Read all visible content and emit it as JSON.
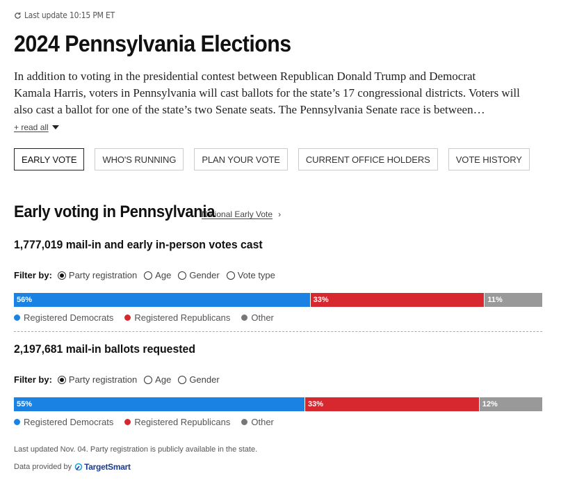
{
  "header": {
    "last_update": "Last update 10:15 PM ET",
    "title": "2024 Pennsylvania Elections",
    "intro_line1": "In addition to voting in the presidential contest between Republican Donald Trump and Democrat",
    "intro_line2": "Kamala Harris, voters in Pennsylvania will cast ballots for the state’s 17 congressional districts. Voters will",
    "intro_line3": "also cast a ballot for one of the state’s two Senate seats. The Pennsylvania Senate race is between…",
    "read_all": "+ read all"
  },
  "tabs": [
    {
      "label": "EARLY VOTE",
      "active": true
    },
    {
      "label": "WHO'S RUNNING"
    },
    {
      "label": "PLAN YOUR VOTE"
    },
    {
      "label": "CURRENT OFFICE HOLDERS"
    },
    {
      "label": "VOTE HISTORY"
    }
  ],
  "early_voting": {
    "title": "Early voting in Pennsylvania",
    "national_link": "National Early Vote",
    "chevron": "›",
    "filter_label": "Filter by:",
    "block1": {
      "count": "1,777,019",
      "count_suffix": " mail-in and early in-person votes cast",
      "filters": [
        "Party registration",
        "Age",
        "Gender",
        "Vote type"
      ],
      "selected_filter": "Party registration",
      "bar": [
        {
          "party": "dem",
          "pct": 56,
          "label": "56%"
        },
        {
          "party": "rep",
          "pct": 33,
          "label": "33%"
        },
        {
          "party": "oth",
          "pct": 11,
          "label": "11%"
        }
      ]
    },
    "block2": {
      "count": "2,197,681",
      "count_suffix": " mail-in ballots requested",
      "filters": [
        "Party registration",
        "Age",
        "Gender"
      ],
      "selected_filter": "Party registration",
      "bar": [
        {
          "party": "dem",
          "pct": 55,
          "label": "55%"
        },
        {
          "party": "rep",
          "pct": 33,
          "label": "33%"
        },
        {
          "party": "oth",
          "pct": 12,
          "label": "12%"
        }
      ]
    },
    "legend": [
      {
        "label": "Registered Democrats",
        "color": "#1a82e2"
      },
      {
        "label": "Registered Republicans",
        "color": "#d7282f"
      },
      {
        "label": "Other",
        "color": "#777777"
      }
    ]
  },
  "footer": {
    "note": "Last updated Nov. 04. Party registration is publicly available in the state.",
    "provided_by": "Data provided by",
    "provider": "TargetSmart"
  }
}
